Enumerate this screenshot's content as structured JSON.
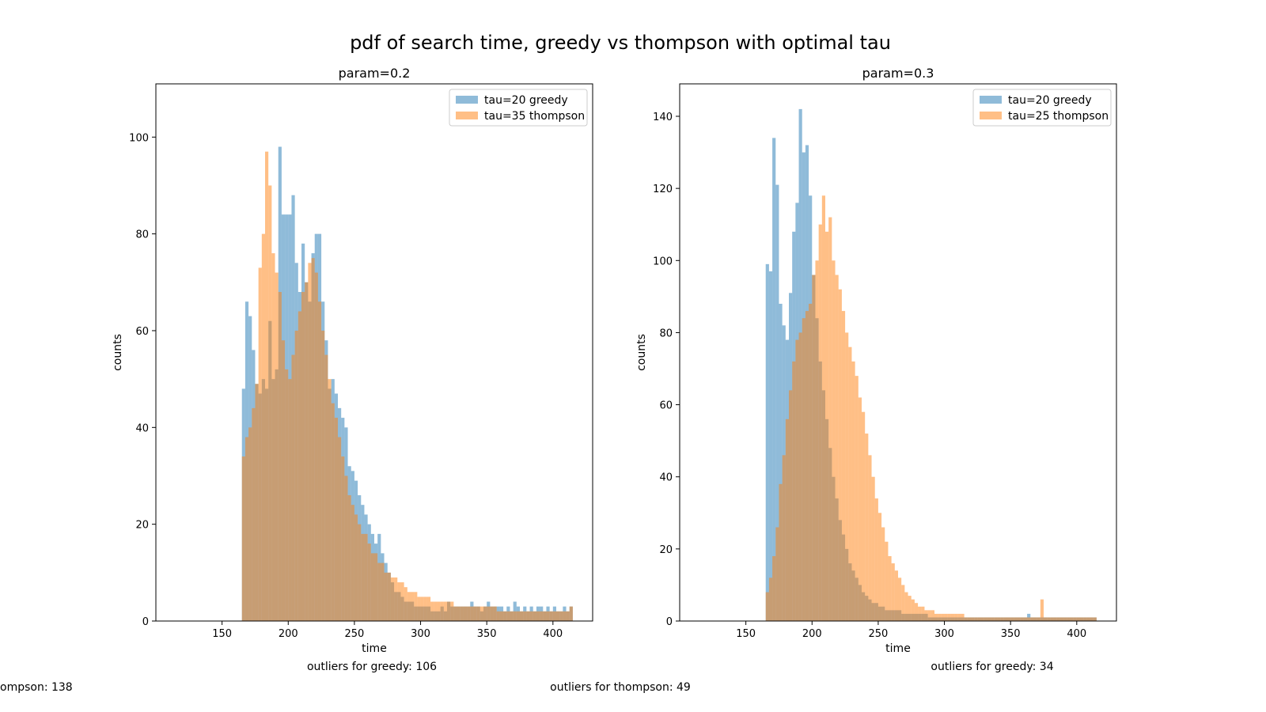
{
  "figure": {
    "title": "pdf of search time, greedy vs thompson with optimal tau",
    "notes": {
      "left_greedy": "outliers for greedy: 106",
      "left_thompson": "ompson: 138",
      "right_greedy": "outliers for greedy: 34",
      "right_thompson": "outliers for thompson: 49"
    }
  },
  "colors": {
    "greedy": "#1f77b4",
    "thompson": "#ff7f0e"
  },
  "chart_data": [
    {
      "type": "bar",
      "histogram": true,
      "title": "param=0.2",
      "xlabel": "time",
      "ylabel": "counts",
      "xlim": [
        100,
        430
      ],
      "ylim": [
        0,
        111
      ],
      "xticks": [
        150,
        200,
        250,
        300,
        350,
        400
      ],
      "yticks": [
        0,
        20,
        40,
        60,
        80,
        100
      ],
      "bin_start": 165,
      "bin_width": 2.5,
      "legend": {
        "position": "upper right"
      },
      "series": [
        {
          "name": "tau=20 greedy",
          "values": [
            48,
            66,
            63,
            56,
            49,
            47,
            50,
            48,
            62,
            50,
            52,
            98,
            84,
            84,
            84,
            88,
            74,
            68,
            78,
            70,
            66,
            76,
            80,
            80,
            66,
            58,
            48,
            50,
            47,
            44,
            42,
            40,
            32,
            31,
            29,
            26,
            24,
            22,
            20,
            18,
            16,
            18,
            14,
            12,
            10,
            8,
            6,
            6,
            5,
            4,
            4,
            4,
            3,
            3,
            3,
            3,
            3,
            2,
            2,
            2,
            3,
            2,
            4,
            3,
            3,
            3,
            3,
            3,
            3,
            4,
            3,
            3,
            2,
            3,
            4,
            3,
            3,
            3,
            3,
            2,
            3,
            2,
            4,
            3,
            2,
            3,
            2,
            3,
            2,
            3,
            3,
            2,
            3,
            2,
            3,
            2,
            2,
            3,
            2,
            3
          ]
        },
        {
          "name": "tau=35 thompson",
          "values": [
            34,
            38,
            40,
            44,
            49,
            73,
            80,
            97,
            90,
            76,
            72,
            68,
            58,
            52,
            50,
            55,
            60,
            64,
            68,
            70,
            74,
            75,
            72,
            66,
            60,
            55,
            50,
            45,
            42,
            38,
            34,
            30,
            26,
            24,
            22,
            20,
            18,
            18,
            16,
            14,
            14,
            12,
            12,
            10,
            10,
            9,
            9,
            8,
            8,
            7,
            6,
            6,
            6,
            5,
            5,
            5,
            5,
            4,
            4,
            4,
            4,
            4,
            4,
            4,
            3,
            3,
            3,
            3,
            3,
            3,
            3,
            3,
            3,
            3,
            3,
            3,
            3,
            2,
            2,
            2,
            2,
            2,
            2,
            2,
            2,
            2,
            2,
            2,
            2,
            2,
            2,
            2,
            2,
            2,
            2,
            2,
            2,
            2,
            2,
            3
          ]
        }
      ]
    },
    {
      "type": "bar",
      "histogram": true,
      "title": "param=0.3",
      "xlabel": "time",
      "ylabel": "counts",
      "xlim": [
        100,
        430
      ],
      "ylim": [
        0,
        149
      ],
      "xticks": [
        150,
        200,
        250,
        300,
        350,
        400
      ],
      "yticks": [
        0,
        20,
        40,
        60,
        80,
        100,
        120,
        140
      ],
      "bin_start": 165,
      "bin_width": 2.5,
      "legend": {
        "position": "upper right"
      },
      "series": [
        {
          "name": "tau=20 greedy",
          "values": [
            99,
            97,
            134,
            121,
            88,
            82,
            78,
            91,
            108,
            116,
            142,
            130,
            132,
            118,
            96,
            84,
            72,
            64,
            56,
            48,
            40,
            34,
            28,
            24,
            20,
            16,
            14,
            12,
            10,
            8,
            7,
            6,
            5,
            5,
            4,
            4,
            3,
            3,
            3,
            3,
            3,
            2,
            2,
            2,
            2,
            2,
            2,
            2,
            2,
            1,
            1,
            1,
            1,
            1,
            1,
            1,
            1,
            1,
            1,
            1,
            1,
            1,
            1,
            1,
            1,
            1,
            1,
            1,
            1,
            1,
            1,
            1,
            1,
            1,
            1,
            1,
            1,
            1,
            1,
            2,
            1,
            1,
            1,
            1,
            1,
            1,
            1,
            1,
            1,
            1,
            1,
            1,
            1,
            1,
            1,
            1,
            1,
            1,
            1,
            1
          ]
        },
        {
          "name": "tau=25 thompson",
          "values": [
            8,
            12,
            18,
            26,
            38,
            46,
            56,
            64,
            72,
            78,
            80,
            84,
            86,
            88,
            96,
            100,
            110,
            118,
            108,
            112,
            100,
            96,
            92,
            86,
            80,
            76,
            72,
            68,
            62,
            58,
            52,
            46,
            40,
            34,
            30,
            26,
            22,
            18,
            16,
            14,
            12,
            10,
            8,
            7,
            6,
            5,
            4,
            4,
            3,
            3,
            3,
            2,
            2,
            2,
            2,
            2,
            2,
            2,
            2,
            2,
            1,
            1,
            1,
            1,
            1,
            1,
            1,
            1,
            1,
            1,
            1,
            1,
            1,
            1,
            1,
            1,
            1,
            1,
            1,
            1,
            1,
            1,
            1,
            6,
            1,
            1,
            1,
            1,
            1,
            1,
            1,
            1,
            1,
            1,
            1,
            1,
            1,
            1,
            1,
            1
          ]
        }
      ]
    }
  ]
}
